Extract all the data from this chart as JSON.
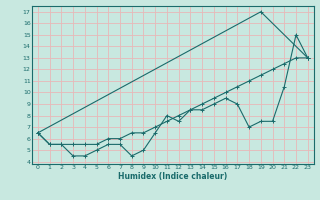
{
  "xlabel": "Humidex (Indice chaleur)",
  "bg_color": "#c8e8e0",
  "grid_color": "#e8b8b8",
  "line_color": "#1a6b6b",
  "xlim": [
    -0.5,
    23.5
  ],
  "ylim": [
    3.8,
    17.5
  ],
  "xticks": [
    0,
    1,
    2,
    3,
    4,
    5,
    6,
    7,
    8,
    9,
    10,
    11,
    12,
    13,
    14,
    15,
    16,
    17,
    18,
    19,
    20,
    21,
    22,
    23
  ],
  "yticks": [
    4,
    5,
    6,
    7,
    8,
    9,
    10,
    11,
    12,
    13,
    14,
    15,
    16,
    17
  ],
  "line1_x": [
    0,
    1,
    2,
    3,
    4,
    5,
    6,
    7,
    8,
    9,
    10,
    11,
    12,
    13,
    14,
    15,
    16,
    17,
    18,
    19,
    20,
    21,
    22,
    23
  ],
  "line1_y": [
    6.5,
    5.5,
    5.5,
    4.5,
    4.5,
    5.0,
    5.5,
    5.5,
    4.5,
    5.0,
    6.5,
    8.0,
    7.5,
    8.5,
    8.5,
    9.0,
    9.5,
    9.0,
    7.0,
    7.5,
    7.5,
    10.5,
    15.0,
    13.0
  ],
  "line2_x": [
    0,
    1,
    2,
    3,
    4,
    5,
    6,
    7,
    8,
    9,
    10,
    11,
    12,
    13,
    14,
    15,
    16,
    17,
    18,
    19,
    20,
    21,
    22,
    23
  ],
  "line2_y": [
    6.5,
    5.5,
    5.5,
    5.5,
    5.5,
    5.5,
    6.0,
    6.0,
    6.5,
    6.5,
    7.0,
    7.5,
    8.0,
    8.5,
    9.0,
    9.5,
    10.0,
    10.5,
    11.0,
    11.5,
    12.0,
    12.5,
    13.0,
    13.0
  ],
  "line3_x": [
    0,
    19,
    23
  ],
  "line3_y": [
    6.5,
    17.0,
    13.0
  ],
  "xlabel_fontsize": 5.5,
  "tick_fontsize": 4.5
}
